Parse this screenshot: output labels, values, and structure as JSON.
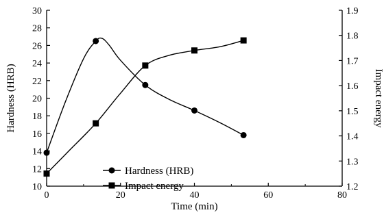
{
  "chart_data": {
    "type": "line",
    "title": "",
    "xlabel": "Time (min)",
    "ylabel": "Hardness (HRB)",
    "y2label": "Impact energy",
    "xlim": [
      0,
      80
    ],
    "ylim": [
      10,
      30
    ],
    "y2lim": [
      1.2,
      1.9
    ],
    "x_ticks": [
      0,
      20,
      40,
      60,
      80
    ],
    "y_ticks": [
      10,
      12,
      14,
      16,
      18,
      20,
      22,
      24,
      26,
      28,
      30
    ],
    "y2_ticks": [
      "1.2",
      "1.3",
      "1.4",
      "1.5",
      "1.6",
      "1.7",
      "1.8",
      "1.9"
    ],
    "grid": false,
    "legend_position": "center-left",
    "series": [
      {
        "name": "Hardness (HRB)",
        "axis": "left",
        "marker": "circle",
        "x": [
          0,
          13.3,
          26.7,
          40,
          53.3
        ],
        "values": [
          13.8,
          26.5,
          21.5,
          18.6,
          15.8
        ],
        "curve_x": [
          0,
          5,
          10,
          13.3,
          15,
          17,
          20,
          26.7,
          33,
          40,
          47,
          53.3
        ],
        "curve_y": [
          13.8,
          19.5,
          24.5,
          26.5,
          26.8,
          26.0,
          24.3,
          21.5,
          19.9,
          18.6,
          17.2,
          15.8
        ]
      },
      {
        "name": "Impact energy",
        "axis": "right",
        "marker": "square",
        "x": [
          0,
          13.3,
          26.7,
          40,
          53.3
        ],
        "values": [
          1.25,
          1.45,
          1.68,
          1.74,
          1.78
        ],
        "curve_x": [
          0,
          6,
          13.3,
          20,
          26.7,
          33,
          40,
          47,
          53.3
        ],
        "curve_y": [
          1.25,
          1.34,
          1.45,
          1.57,
          1.68,
          1.72,
          1.74,
          1.755,
          1.78
        ]
      }
    ]
  }
}
